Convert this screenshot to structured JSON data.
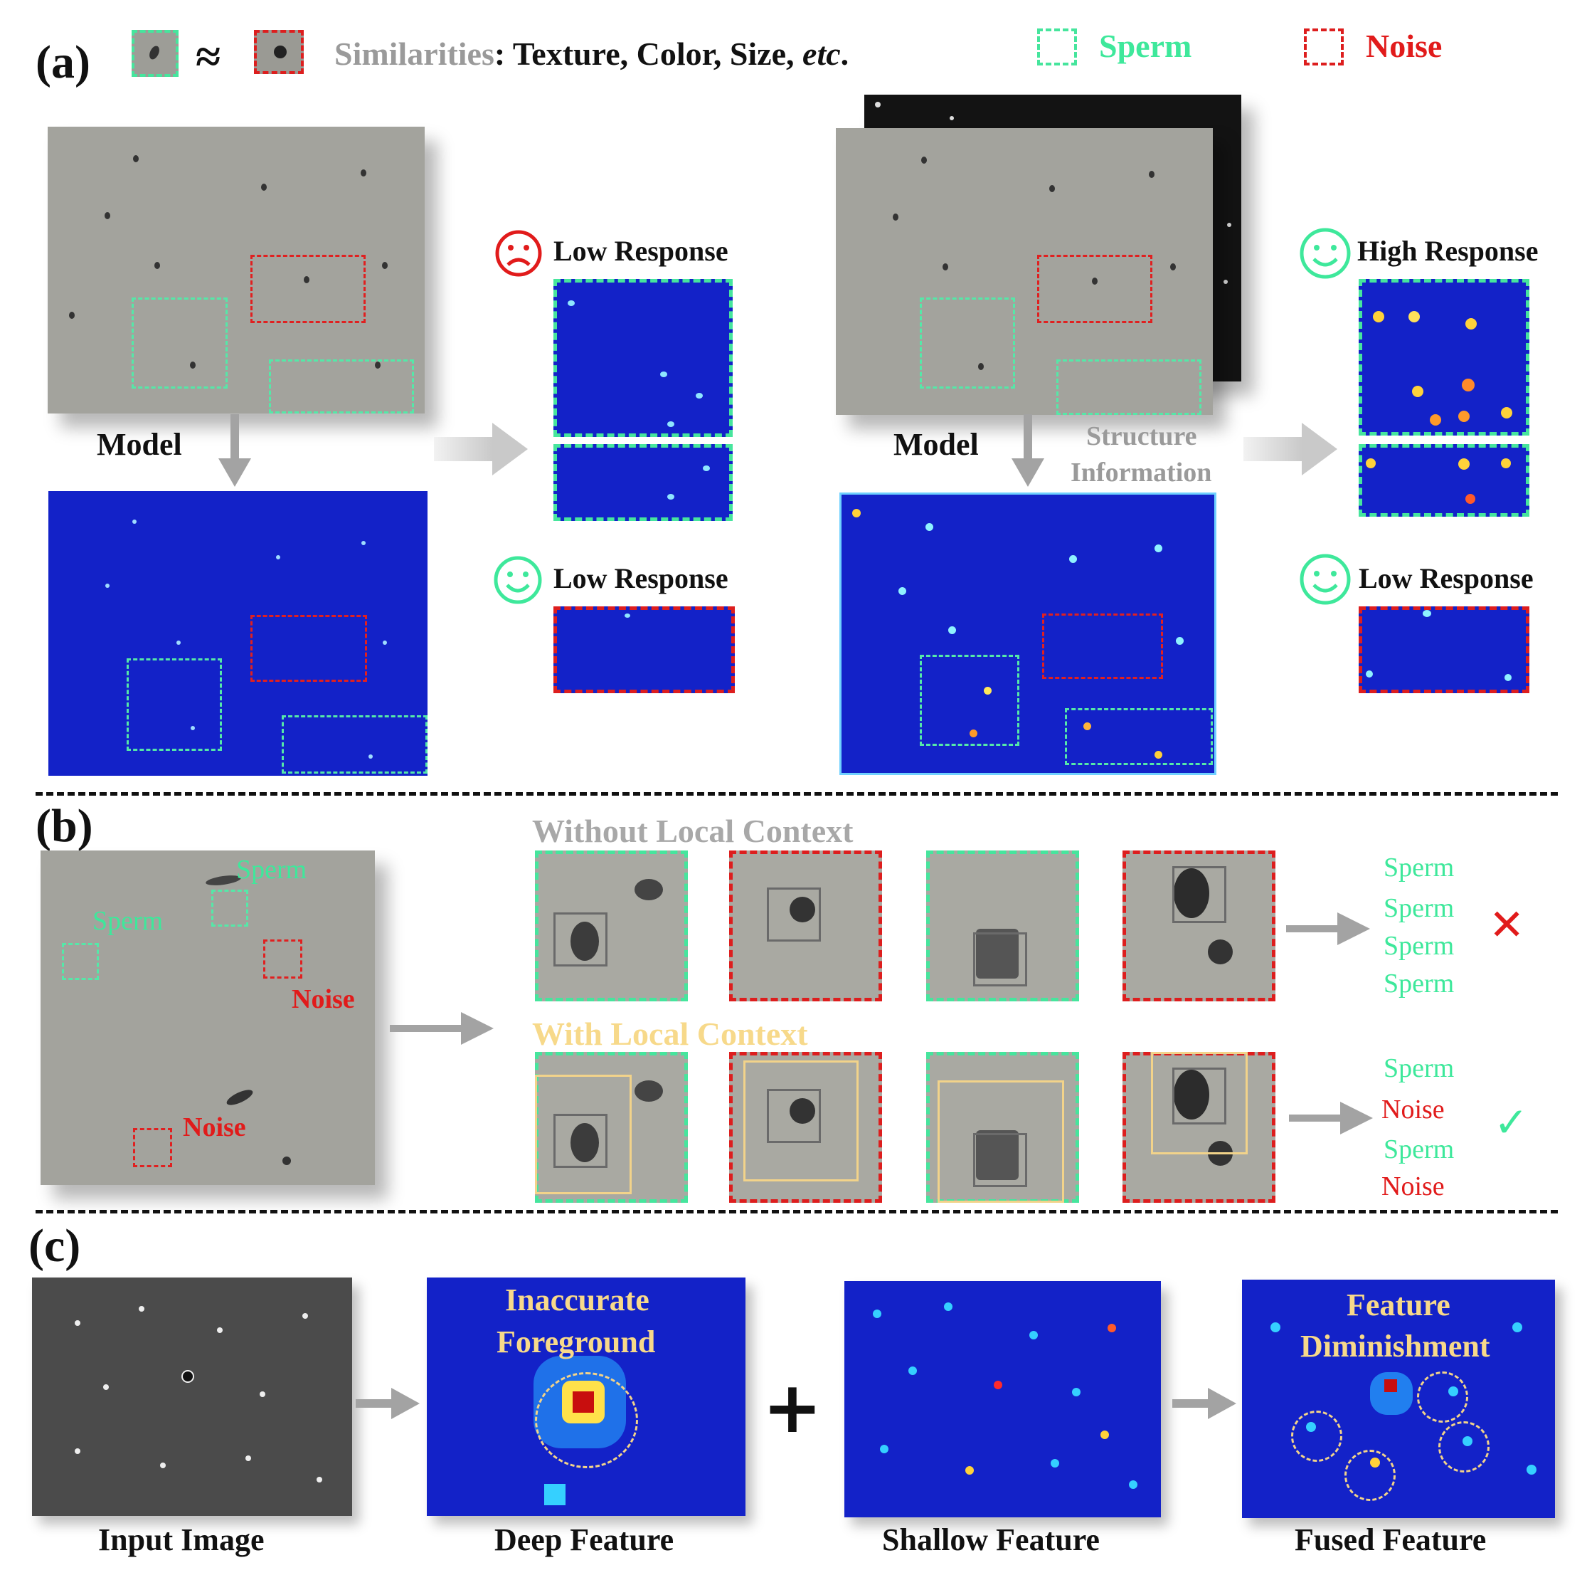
{
  "panel_a": {
    "label": "(a)",
    "approx_symbol": "≈",
    "similarities_word": "Similarities",
    "similarities_rest": ": Texture, Color, Size, ",
    "similarities_etc": "etc",
    "similarities_end": ".",
    "legend_sperm": "Sperm",
    "legend_noise": "Noise",
    "model_left": "Model",
    "model_right": "Model",
    "structure_line1": "Structure",
    "structure_line2": "Information",
    "low_response_top": "Low Response",
    "low_response_bottom_left": "Low Response",
    "high_response": "High Response",
    "low_response_bottom_right": "Low Response"
  },
  "panel_b": {
    "label": "(b)",
    "img_sperm_1": "Sperm",
    "img_sperm_2": "Sperm",
    "img_noise_1": "Noise",
    "img_noise_2": "Noise",
    "without_context": "Without Local Context",
    "with_context": "With Local Context",
    "without_results": [
      "Sperm",
      "Sperm",
      "Sperm",
      "Sperm"
    ],
    "with_results": [
      "Sperm",
      "Noise",
      "Sperm",
      "Noise"
    ],
    "wrong_mark": "✕",
    "right_mark": "✓"
  },
  "panel_c": {
    "label": "(c)",
    "inaccurate_line1": "Inaccurate",
    "inaccurate_line2": "Foreground",
    "diminish_line1": "Feature",
    "diminish_line2": "Diminishment",
    "plus": "+",
    "captions": [
      "Input Image",
      "Deep Feature",
      "Shallow Feature",
      "Fused Feature"
    ]
  },
  "colors": {
    "sperm_green": "#3ee89b",
    "noise_red": "#e11b1b",
    "heatmap_blue": "#1322c8",
    "context_yellow": "#f2d38a"
  }
}
